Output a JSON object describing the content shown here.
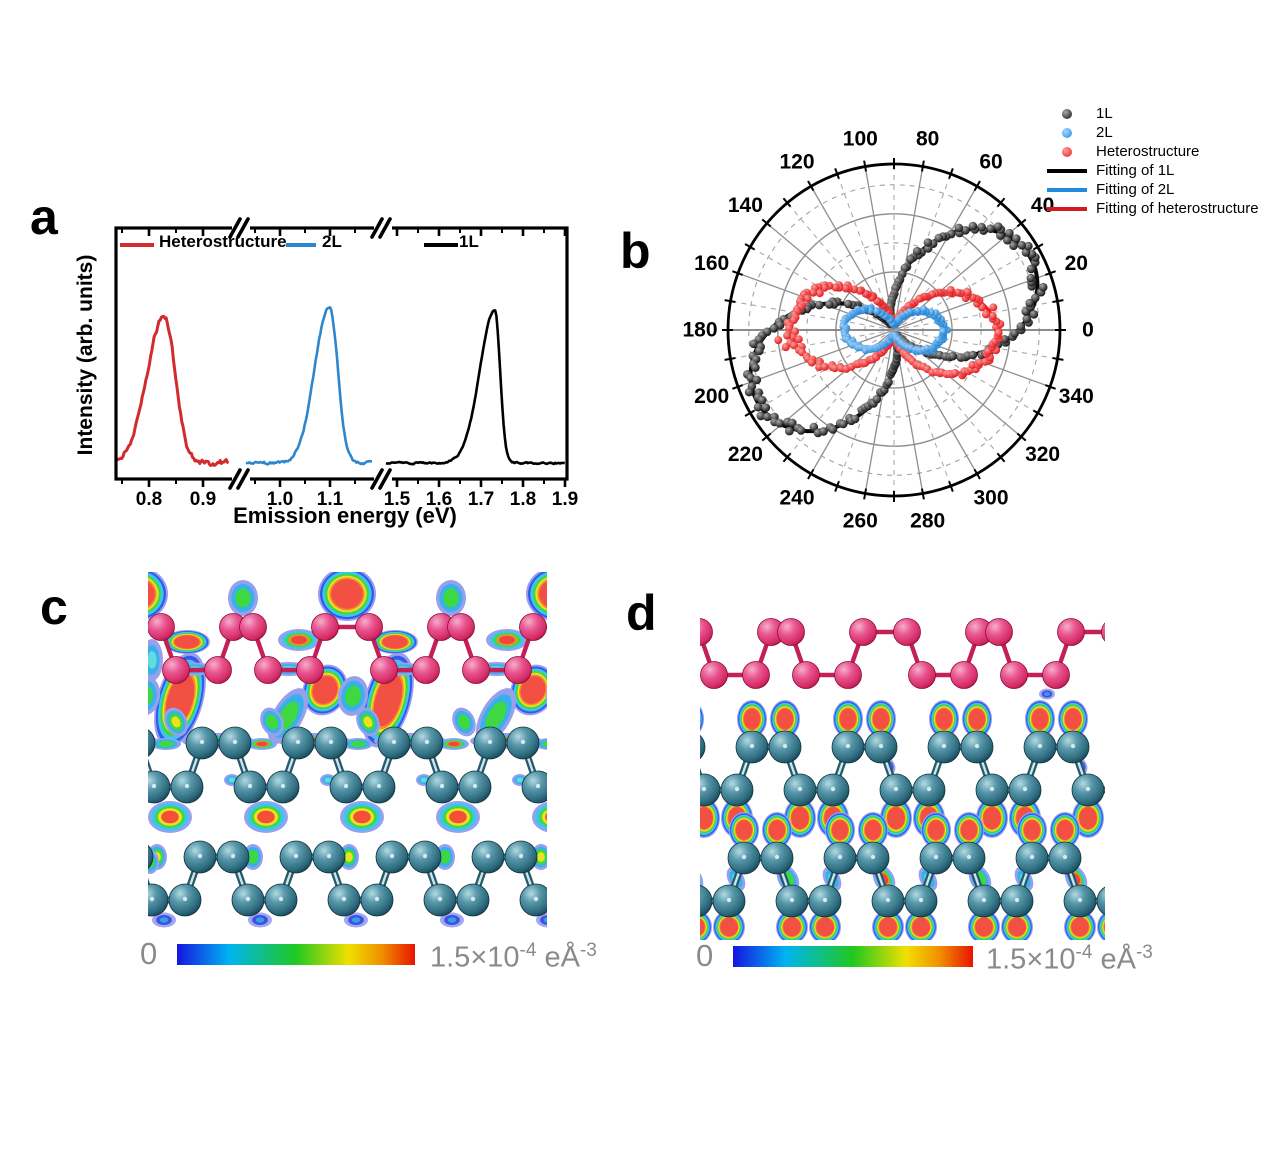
{
  "panels": {
    "a": {
      "label": "a",
      "x_label": "Emission energy (eV)",
      "y_label": "Intensity (arb. units)",
      "legend": [
        {
          "label": "Heterostructure",
          "color": "#d22b2d"
        },
        {
          "label": "2L",
          "color": "#2e86cd"
        },
        {
          "label": "1L",
          "color": "#000000"
        }
      ]
    },
    "b": {
      "label": "b",
      "legend": [
        {
          "label": "1L",
          "type": "dot",
          "color": "#0a0a0a",
          "hi": "#a8a8a8"
        },
        {
          "label": "2L",
          "type": "dot",
          "color": "#1f8ce0",
          "hi": "#a6d6ff"
        },
        {
          "label": "Heterostructure",
          "type": "dot",
          "color": "#e81b21",
          "hi": "#ffa09a"
        },
        {
          "label": "Fitting of 1L",
          "type": "line",
          "color": "#000000"
        },
        {
          "label": "Fitting of 2L",
          "type": "line",
          "color": "#1f8ce0"
        },
        {
          "label": "Fitting of heterostructure",
          "type": "line",
          "color": "#d4191f"
        }
      ]
    },
    "c": {
      "label": "c",
      "colorbar": {
        "min": "0",
        "max_mantissa": "1.5×10",
        "max_exp": "-4",
        "unit": " eÅ",
        "unit_exp": "-3"
      }
    },
    "d": {
      "label": "d",
      "colorbar": {
        "min": "0",
        "max_mantissa": "1.5×10",
        "max_exp": "-4",
        "unit": " eÅ",
        "unit_exp": "-3"
      }
    }
  },
  "colors": {
    "density_scale": [
      "#1515e0",
      "#00b4f0",
      "#20c820",
      "#f0e000",
      "#f09000",
      "#e81400"
    ],
    "blob_outer": "#98a0ee",
    "blob_blue": "#3858ec",
    "blob_cyan": "#38c8ec",
    "blob_green": "#40d840",
    "blob_yellow": "#ece020",
    "blob_orange": "#f29030",
    "blob_red": "#f25042",
    "atom_pink": "#d42a64",
    "atom_teal": "#2d6a7e",
    "bond_pink": "#c22057",
    "bond_teal": "#245a6d",
    "grid_gray": "#8f8f8f",
    "label_gray": "#8a8a8a"
  },
  "chart_data": [
    {
      "panel": "a",
      "type": "line",
      "title": "",
      "xlabel": "Emission energy (eV)",
      "ylabel": "Intensity (arb. units)",
      "axis_breaks": 2,
      "grid": false,
      "segments": [
        {
          "tick_labels": [
            "0.8",
            "0.9"
          ],
          "ticks": [
            0.8,
            0.9
          ],
          "range": [
            0.745,
            0.949
          ]
        },
        {
          "tick_labels": [
            "1.0",
            "1.1"
          ],
          "ticks": [
            1.0,
            1.1
          ],
          "range": [
            0.932,
            1.185
          ]
        },
        {
          "tick_labels": [
            "1.5",
            "1.6",
            "1.7",
            "1.8",
            "1.9"
          ],
          "ticks": [
            1.5,
            1.6,
            1.7,
            1.8,
            1.9
          ],
          "range": [
            1.472,
            1.898
          ]
        }
      ],
      "series": [
        {
          "name": "Heterostructure",
          "color": "#d22b2d",
          "segment": 0,
          "peak_eV": 0.828,
          "sigma_left": 0.0315,
          "sigma_right": 0.0205,
          "rel_height": 1.0,
          "noise": 0.05
        },
        {
          "name": "2L",
          "color": "#2e86cd",
          "segment": 1,
          "peak_eV": 1.099,
          "sigma_left": 0.0295,
          "sigma_right": 0.0165,
          "rel_height": 1.07,
          "noise": 0.026
        },
        {
          "name": "1L",
          "color": "#000000",
          "segment": 2,
          "peak_eV": 1.733,
          "sigma_left": 0.036,
          "sigma_right": 0.0125,
          "rel_height": 1.04,
          "noise": 0.015
        }
      ]
    },
    {
      "panel": "b",
      "type": "polar-scatter",
      "angle_tick_labels": [
        "0",
        "20",
        "40",
        "60",
        "80",
        "100",
        "120",
        "140",
        "160",
        "180",
        "200",
        "220",
        "240",
        "260",
        "280",
        "300",
        "320",
        "340"
      ],
      "angle_step_deg": 20,
      "radial_rings_fraction": [
        0.175,
        0.35,
        0.525,
        0.7,
        0.875
      ],
      "series": [
        {
          "name": "1L",
          "color": "#0a0a0a",
          "amplitude": 0.93,
          "orientation_deg": 27,
          "min_fraction": 0.05,
          "dot_r": 4.3
        },
        {
          "name": "Heterostructure",
          "color": "#e81b21",
          "amplitude": 0.62,
          "orientation_deg": 177,
          "min_fraction": 0.06,
          "dot_r": 4.0
        },
        {
          "name": "2L",
          "color": "#1f8ce0",
          "amplitude": 0.3,
          "orientation_deg": 178,
          "min_fraction": 0.08,
          "dot_r": 3.6
        }
      ],
      "fit_labels": [
        "Fitting of 1L",
        "Fitting of 2L",
        "Fitting of heterostructure"
      ],
      "legend_position": "top-right"
    },
    {
      "panel": "c",
      "type": "heatmap",
      "description": "charge density isosurface of heterostructure, interlayer charge present",
      "colorbar_min": 0,
      "colorbar_max_label": "1.5×10-4 eÅ-3"
    },
    {
      "panel": "d",
      "type": "heatmap",
      "description": "charge density isosurface, no interlayer charge",
      "colorbar_min": 0,
      "colorbar_max_label": "1.5×10-4 eÅ-3"
    }
  ]
}
